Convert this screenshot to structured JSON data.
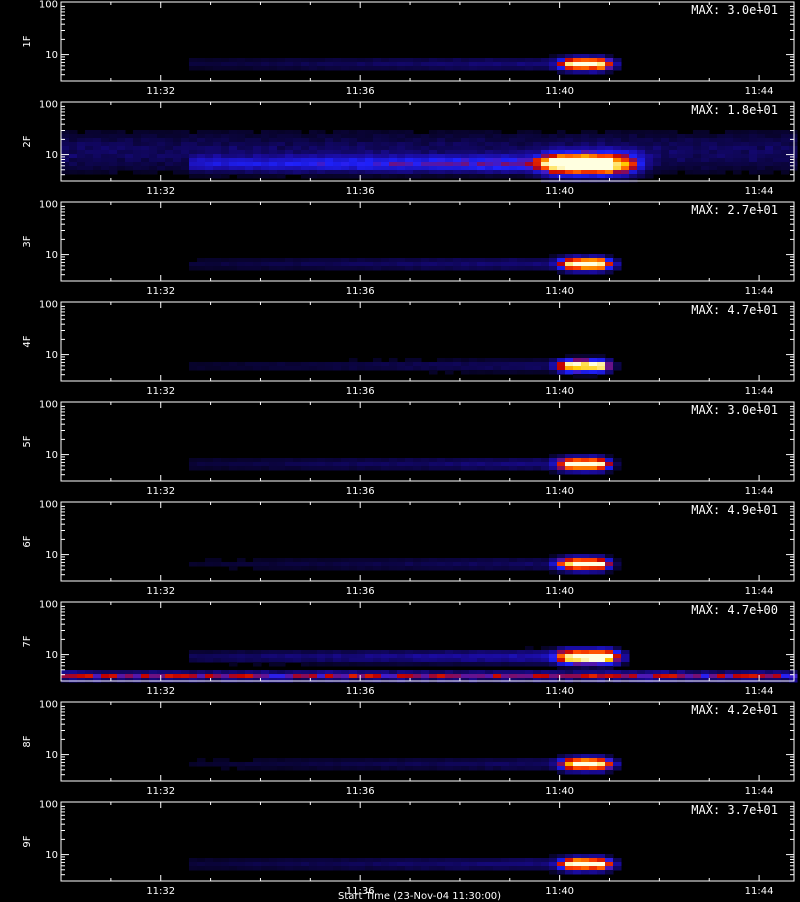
{
  "chart_data": {
    "type": "heatmap",
    "layout": "stacked",
    "colormap": [
      "#000000",
      "#1a0a9a",
      "#1e22ff",
      "#c00000",
      "#ff4400",
      "#ffcc00",
      "#ffffe0"
    ],
    "x_ticks": [
      "11:32",
      "11:36",
      "11:40",
      "11:44"
    ],
    "x_tick_minutes": [
      32,
      36,
      40,
      44
    ],
    "xlim_minutes": [
      30.0,
      44.7
    ],
    "y_ticks": [
      "100",
      "10"
    ],
    "y_tick_values": [
      100,
      10
    ],
    "ylim": [
      3,
      110
    ],
    "y_scale": "log",
    "xlabel": "Start Time (23-Nov-04 11:30:00)",
    "panels": [
      {
        "label": "1F",
        "max_text": "MAX: 3.0e+01",
        "max": 30.0,
        "burst_center": 40.55,
        "burst_y": 6.5,
        "spread": 1.0,
        "bg": 0.1,
        "noise_band": 0.0
      },
      {
        "label": "2F",
        "max_text": "MAX: 1.8e+01",
        "max": 18.0,
        "burst_center": 40.6,
        "burst_y": 6.5,
        "spread": 1.8,
        "bg": 0.28,
        "noise_band": 0.0
      },
      {
        "label": "3F",
        "max_text": "MAX: 2.7e+01",
        "max": 27.0,
        "burst_center": 40.55,
        "burst_y": 6.5,
        "spread": 1.0,
        "bg": 0.1,
        "noise_band": 0.0
      },
      {
        "label": "4F",
        "max_text": "MAX: 4.7e+01",
        "max": 47.0,
        "burst_center": 40.5,
        "burst_y": 6.0,
        "spread": 1.0,
        "bg": 0.08,
        "noise_band": 0.0
      },
      {
        "label": "5F",
        "max_text": "MAX: 3.0e+01",
        "max": 30.0,
        "burst_center": 40.5,
        "burst_y": 6.5,
        "spread": 1.0,
        "bg": 0.1,
        "noise_band": 0.0
      },
      {
        "label": "6F",
        "max_text": "MAX: 4.9e+01",
        "max": 49.0,
        "burst_center": 40.5,
        "burst_y": 6.5,
        "spread": 1.0,
        "bg": 0.08,
        "noise_band": 0.0
      },
      {
        "label": "7F",
        "max_text": "MAX: 4.7e+00",
        "max": 4.7,
        "burst_center": 40.6,
        "burst_y": 9.0,
        "spread": 1.2,
        "bg": 0.15,
        "noise_band": 0.45
      },
      {
        "label": "8F",
        "max_text": "MAX: 4.2e+01",
        "max": 42.0,
        "burst_center": 40.55,
        "burst_y": 6.5,
        "spread": 1.0,
        "bg": 0.08,
        "noise_band": 0.0
      },
      {
        "label": "9F",
        "max_text": "MAX: 3.7e+01",
        "max": 37.0,
        "burst_center": 40.55,
        "burst_y": 6.5,
        "spread": 1.0,
        "bg": 0.1,
        "noise_band": 0.0
      }
    ]
  }
}
